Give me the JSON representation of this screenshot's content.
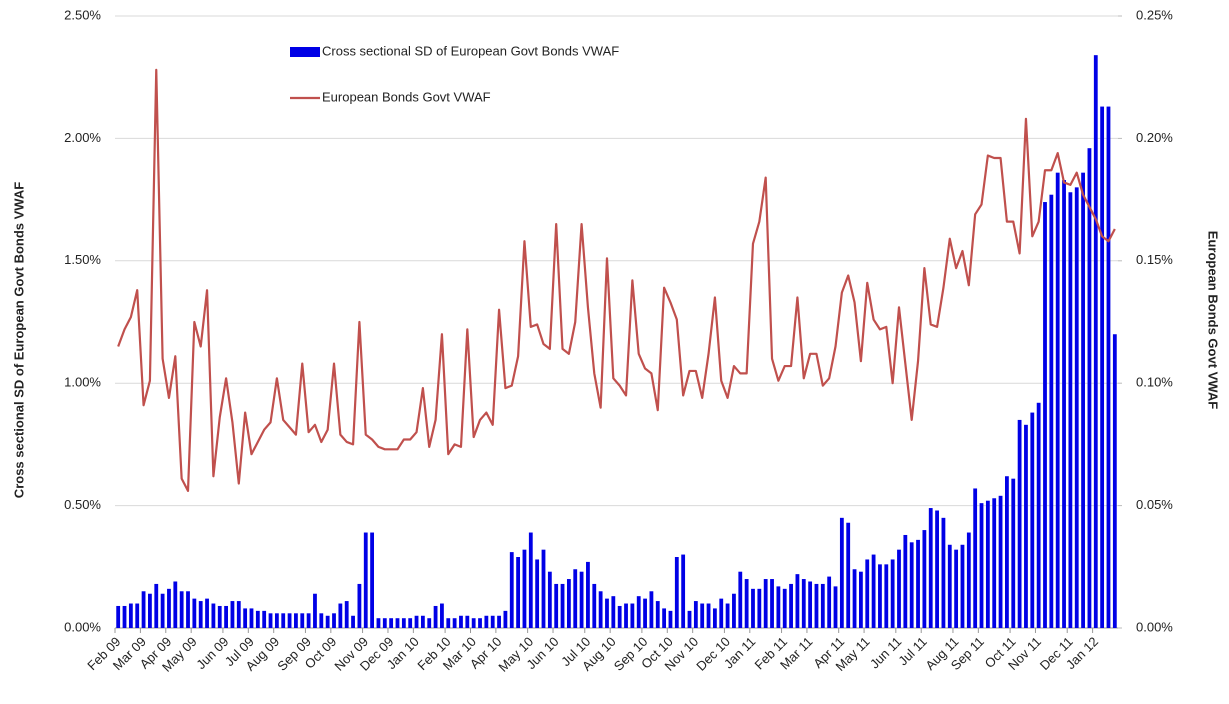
{
  "chart_data": {
    "type": "bar_line",
    "y_label": "Cross sectional SD of European Govt Bonds VWAF",
    "y2_label": "European Bonds Govt VWAF",
    "categories": [
      "Feb 09",
      null,
      null,
      null,
      "Mar 09",
      null,
      null,
      null,
      "Apr 09",
      null,
      null,
      null,
      "May 09",
      null,
      null,
      null,
      null,
      "Jun 09",
      null,
      null,
      null,
      "Jul 09",
      null,
      null,
      null,
      "Aug 09",
      null,
      null,
      null,
      null,
      "Sep 09",
      null,
      null,
      null,
      "Oct 09",
      null,
      null,
      null,
      null,
      "Nov 09",
      null,
      null,
      null,
      "Dec 09",
      null,
      null,
      null,
      "Jan 10",
      null,
      null,
      null,
      null,
      "Feb 10",
      null,
      null,
      null,
      "Mar 10",
      null,
      null,
      null,
      "Apr 10",
      null,
      null,
      null,
      null,
      "May 10",
      null,
      null,
      null,
      "Jun 10",
      null,
      null,
      null,
      null,
      "Jul 10",
      null,
      null,
      null,
      "Aug 10",
      null,
      null,
      null,
      null,
      "Sep 10",
      null,
      null,
      null,
      "Oct 10",
      null,
      null,
      null,
      "Nov 10",
      null,
      null,
      null,
      null,
      "Dec 10",
      null,
      null,
      null,
      "Jan 11",
      null,
      null,
      null,
      null,
      "Feb 11",
      null,
      null,
      null,
      "Mar 11",
      null,
      null,
      null,
      null,
      "Apr 11",
      null,
      null,
      null,
      "May 11",
      null,
      null,
      null,
      null,
      "Jun 11",
      null,
      null,
      null,
      "Jul 11",
      null,
      null,
      null,
      null,
      "Aug 11",
      null,
      null,
      null,
      "Sep 11",
      null,
      null,
      null,
      null,
      "Oct 11",
      null,
      null,
      null,
      "Nov 11",
      null,
      null,
      null,
      null,
      "Dec 11",
      null,
      null,
      null,
      "Jan 12",
      null,
      null,
      null
    ],
    "series": [
      {
        "name": "Cross sectional SD of European Govt Bonds VWAF",
        "color": "#0000e6",
        "kind": "bar",
        "axis": "y",
        "values": [
          0.09,
          0.09,
          0.1,
          0.1,
          0.15,
          0.14,
          0.18,
          0.14,
          0.16,
          0.19,
          0.15,
          0.15,
          0.12,
          0.11,
          0.12,
          0.1,
          0.09,
          0.09,
          0.11,
          0.11,
          0.08,
          0.08,
          0.07,
          0.07,
          0.06,
          0.06,
          0.06,
          0.06,
          0.06,
          0.06,
          0.06,
          0.14,
          0.06,
          0.05,
          0.06,
          0.1,
          0.11,
          0.05,
          0.18,
          0.39,
          0.39,
          0.04,
          0.04,
          0.04,
          0.04,
          0.04,
          0.04,
          0.05,
          0.05,
          0.04,
          0.09,
          0.1,
          0.04,
          0.04,
          0.05,
          0.05,
          0.04,
          0.04,
          0.05,
          0.05,
          0.05,
          0.07,
          0.31,
          0.29,
          0.32,
          0.39,
          0.28,
          0.32,
          0.23,
          0.18,
          0.18,
          0.2,
          0.24,
          0.23,
          0.27,
          0.18,
          0.15,
          0.12,
          0.13,
          0.09,
          0.1,
          0.1,
          0.13,
          0.12,
          0.15,
          0.11,
          0.08,
          0.07,
          0.29,
          0.3,
          0.07,
          0.11,
          0.1,
          0.1,
          0.08,
          0.12,
          0.1,
          0.14,
          0.23,
          0.2,
          0.16,
          0.16,
          0.2,
          0.2,
          0.17,
          0.16,
          0.18,
          0.22,
          0.2,
          0.19,
          0.18,
          0.18,
          0.21,
          0.17,
          0.45,
          0.43,
          0.24,
          0.23,
          0.28,
          0.3,
          0.26,
          0.26,
          0.28,
          0.32,
          0.38,
          0.35,
          0.36,
          0.4,
          0.49,
          0.48,
          0.45,
          0.34,
          0.32,
          0.34,
          0.39,
          0.57,
          0.51,
          0.52,
          0.53,
          0.54,
          0.62,
          0.61,
          0.85,
          0.83,
          0.88,
          0.92,
          1.74,
          1.77,
          1.86,
          1.83,
          1.78,
          1.8,
          1.86,
          1.96,
          2.34,
          2.13,
          2.13,
          1.2
        ]
      },
      {
        "name": "European Bonds Govt VWAF",
        "color": "#c0504d",
        "kind": "line",
        "axis": "y2",
        "values": [
          0.115,
          0.122,
          0.127,
          0.138,
          0.091,
          0.101,
          0.228,
          0.11,
          0.094,
          0.111,
          0.061,
          0.056,
          0.125,
          0.115,
          0.138,
          0.062,
          0.086,
          0.102,
          0.084,
          0.059,
          0.088,
          0.071,
          0.076,
          0.081,
          0.084,
          0.102,
          0.085,
          0.082,
          0.079,
          0.108,
          0.08,
          0.083,
          0.076,
          0.081,
          0.108,
          0.079,
          0.076,
          0.075,
          0.125,
          0.079,
          0.077,
          0.074,
          0.073,
          0.073,
          0.073,
          0.077,
          0.077,
          0.08,
          0.098,
          0.074,
          0.085,
          0.12,
          0.071,
          0.075,
          0.074,
          0.122,
          0.078,
          0.085,
          0.088,
          0.083,
          0.13,
          0.098,
          0.099,
          0.111,
          0.158,
          0.123,
          0.124,
          0.116,
          0.114,
          0.165,
          0.114,
          0.112,
          0.125,
          0.165,
          0.131,
          0.104,
          0.09,
          0.151,
          0.102,
          0.099,
          0.095,
          0.142,
          0.112,
          0.106,
          0.104,
          0.089,
          0.139,
          0.133,
          0.126,
          0.095,
          0.105,
          0.105,
          0.094,
          0.112,
          0.135,
          0.101,
          0.094,
          0.107,
          0.104,
          0.104,
          0.157,
          0.166,
          0.184,
          0.11,
          0.101,
          0.107,
          0.107,
          0.135,
          0.102,
          0.112,
          0.112,
          0.099,
          0.102,
          0.115,
          0.137,
          0.144,
          0.133,
          0.109,
          0.141,
          0.126,
          0.122,
          0.123,
          0.1,
          0.131,
          0.108,
          0.085,
          0.109,
          0.147,
          0.124,
          0.123,
          0.139,
          0.159,
          0.147,
          0.154,
          0.14,
          0.169,
          0.173,
          0.193,
          0.192,
          0.192,
          0.166,
          0.166,
          0.153,
          0.208,
          0.16,
          0.166,
          0.187,
          0.187,
          0.194,
          0.182,
          0.181,
          0.186,
          0.177,
          0.172,
          0.167,
          0.16,
          0.158,
          0.163
        ]
      }
    ],
    "ylim": [
      0,
      2.5
    ],
    "yticks": [
      {
        "value": 0,
        "label": "0.00%"
      },
      {
        "value": 0.5,
        "label": "0.50%"
      },
      {
        "value": 1,
        "label": "1.00%"
      },
      {
        "value": 1.5,
        "label": "1.50%"
      },
      {
        "value": 2,
        "label": "2.00%"
      },
      {
        "value": 2.5,
        "label": "2.50%"
      }
    ],
    "y2lim": [
      0,
      0.25
    ],
    "y2ticks": [
      {
        "value": 0,
        "label": "0.00%"
      },
      {
        "value": 0.05,
        "label": "0.05%"
      },
      {
        "value": 0.1,
        "label": "0.10%"
      },
      {
        "value": 0.15,
        "label": "0.15%"
      },
      {
        "value": 0.2,
        "label": "0.20%"
      },
      {
        "value": 0.25,
        "label": "0.25%"
      }
    ],
    "grid": true,
    "legend": "top"
  }
}
